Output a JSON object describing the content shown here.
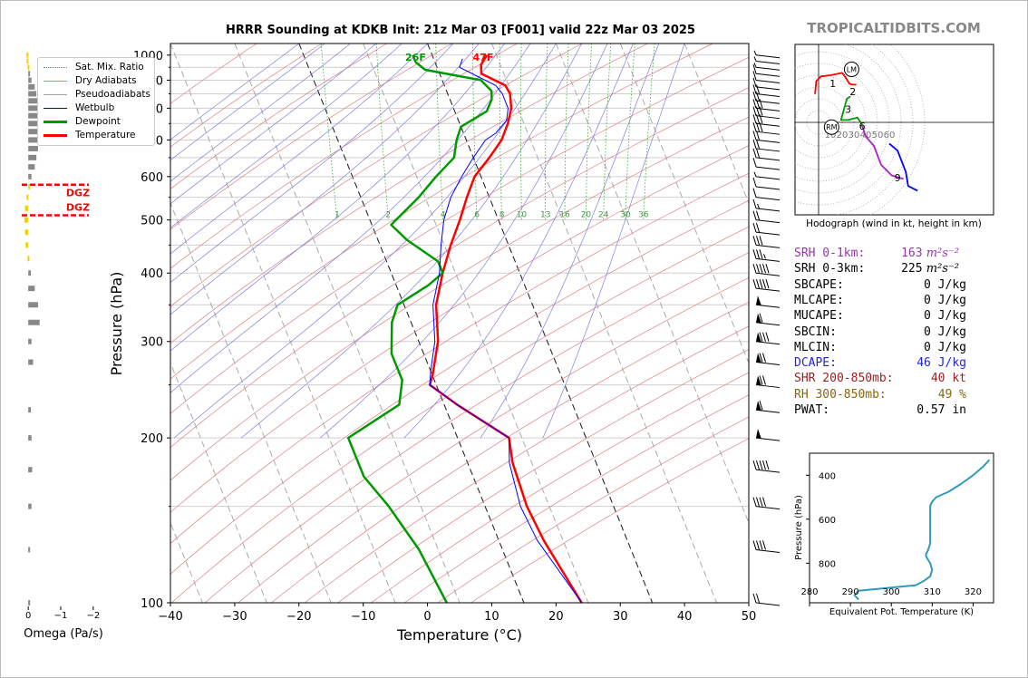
{
  "title": "HRRR Sounding at KDKB Init: 21z Mar 03 [F001] valid 22z Mar 03 2025",
  "brand": "TROPICALTIDBITS.COM",
  "colors": {
    "temperature": "#ff0000",
    "dewpoint": "#009900",
    "wetbulb": "#0000ff",
    "dry_adiabat": "#e08080",
    "moist_adiabat": "#8080e0",
    "mixing_ratio": "#33aa33",
    "srh1": "#9933aa",
    "dcape": "#2222dd",
    "shr": "#992222",
    "rh": "#886611",
    "theta_e": "#3399bb",
    "omega_bar": "#888888",
    "omega_dgz": "#f5d000"
  },
  "chart_data": [
    {
      "type": "line",
      "name": "skew-t",
      "xlabel": "Temperature (°C)",
      "ylabel": "Pressure (hPa)",
      "xlim": [
        -40,
        50
      ],
      "ylim": [
        1050,
        100
      ],
      "log_y": true,
      "x_ticks": [
        "−40",
        "−30",
        "−20",
        "−10",
        "0",
        "10",
        "20",
        "30",
        "40",
        "50"
      ],
      "y_ticks": [
        "100",
        "200",
        "300",
        "400",
        "500",
        "600",
        "700",
        "800",
        "900",
        "1000"
      ],
      "legend": [
        "Sat. Mix. Ratio",
        "Dry Adiabats",
        "Pseudoadiabats",
        "Wetbulb",
        "Dewpoint",
        "Temperature"
      ],
      "legend_position": "top-left",
      "mixing_ratio_labels": [
        "1",
        "2",
        "4",
        "6",
        "8",
        "10",
        "13",
        "16",
        "20",
        "24",
        "30",
        "36"
      ],
      "surface_labels": {
        "dewpoint": "26F",
        "temperature": "47F"
      },
      "series": [
        {
          "name": "Temperature",
          "points": [
            [
              8.5,
              1000
            ],
            [
              7,
              960
            ],
            [
              6.5,
              925
            ],
            [
              9.5,
              880
            ],
            [
              9.7,
              850
            ],
            [
              9,
              800
            ],
            [
              7.5,
              750
            ],
            [
              5.5,
              700
            ],
            [
              2.5,
              650
            ],
            [
              -1,
              600
            ],
            [
              -3.5,
              550
            ],
            [
              -6,
              500
            ],
            [
              -9,
              450
            ],
            [
              -12,
              400
            ],
            [
              -15,
              350
            ],
            [
              -17,
              300
            ],
            [
              -20,
              260
            ],
            [
              -21,
              250
            ],
            [
              -18,
              230
            ],
            [
              -12,
              200
            ],
            [
              -13,
              180
            ],
            [
              -13.5,
              150
            ],
            [
              -13,
              130
            ],
            [
              -11,
              100
            ]
          ]
        },
        {
          "name": "Dewpoint",
          "points": [
            [
              -3,
              1000
            ],
            [
              -3,
              970
            ],
            [
              -2,
              940
            ],
            [
              6,
              900
            ],
            [
              7,
              860
            ],
            [
              6.5,
              830
            ],
            [
              5,
              790
            ],
            [
              0,
              740
            ],
            [
              -1.5,
              700
            ],
            [
              -3,
              650
            ],
            [
              -7,
              600
            ],
            [
              -11,
              550
            ],
            [
              -17,
              490
            ],
            [
              -15.5,
              460
            ],
            [
              -12,
              420
            ],
            [
              -12,
              400
            ],
            [
              -15,
              380
            ],
            [
              -21,
              350
            ],
            [
              -23,
              325
            ],
            [
              -25,
              285
            ],
            [
              -25,
              255
            ],
            [
              -27,
              230
            ],
            [
              -37,
              200
            ],
            [
              -37,
              170
            ],
            [
              -35,
              150
            ],
            [
              -33,
              125
            ],
            [
              -32,
              100
            ]
          ]
        },
        {
          "name": "Wetbulb",
          "points": [
            [
              4.5,
              985
            ],
            [
              3.5,
              950
            ],
            [
              6,
              910
            ],
            [
              8,
              880
            ],
            [
              8.5,
              850
            ],
            [
              8.5,
              800
            ],
            [
              7.5,
              760
            ],
            [
              5,
              720
            ],
            [
              3,
              700
            ],
            [
              0,
              650
            ],
            [
              -3,
              600
            ],
            [
              -6,
              550
            ],
            [
              -8.5,
              500
            ],
            [
              -10.5,
              450
            ],
            [
              -12.5,
              400
            ],
            [
              -15.5,
              350
            ],
            [
              -17.5,
              300
            ],
            [
              -20,
              265
            ],
            [
              -21,
              250
            ],
            [
              -18,
              230
            ],
            [
              -12,
              200
            ],
            [
              -13.5,
              180
            ],
            [
              -14.5,
              150
            ],
            [
              -14,
              130
            ],
            [
              -11,
              100
            ]
          ]
        }
      ]
    },
    {
      "type": "bar",
      "name": "omega-profile",
      "xlabel": "Omega (Pa/s)",
      "xlim": [
        0.2,
        -2.2
      ],
      "x_ticks": [
        "0",
        "−1",
        "−2"
      ],
      "dgz_label": "DGZ",
      "dgz_bounds_hPa": [
        510,
        580
      ],
      "pressure": [
        100,
        125,
        150,
        175,
        200,
        225,
        275,
        300,
        325,
        350,
        375,
        400,
        425,
        450,
        475,
        500,
        525,
        550,
        575,
        600,
        625,
        650,
        675,
        700,
        725,
        750,
        775,
        800,
        825,
        850,
        875,
        900,
        925,
        950,
        975,
        1000
      ],
      "omega": [
        -0.05,
        -0.05,
        -0.1,
        -0.12,
        -0.1,
        -0.08,
        -0.15,
        -0.1,
        -0.35,
        -0.3,
        -0.2,
        -0.08,
        0.02,
        0.08,
        0.1,
        0.12,
        0.1,
        0.05,
        0.0,
        -0.1,
        -0.2,
        -0.25,
        -0.3,
        -0.35,
        -0.4,
        -0.4,
        -0.4,
        -0.35,
        -0.3,
        -0.25,
        -0.2,
        -0.1,
        -0.05,
        0.02,
        0.05,
        0.05
      ]
    },
    {
      "type": "line",
      "name": "hodograph",
      "caption": "Hodograph (wind in kt, height in km)",
      "ring_labels": [
        "10",
        "20",
        "30",
        "40",
        "50",
        "60"
      ],
      "height_labels": [
        {
          "label": "1",
          "u": 12,
          "v": 33
        },
        {
          "label": "2",
          "u": 29,
          "v": 26
        },
        {
          "label": "3",
          "u": 25,
          "v": 11
        },
        {
          "label": "6",
          "u": 37,
          "v": -3
        }
      ],
      "extra_height_label": {
        "label": "9",
        "u": 67,
        "v": -47
      },
      "markers": [
        {
          "label": "LM",
          "u": 28,
          "v": 45
        },
        {
          "label": "RM",
          "u": 11,
          "v": -4
        }
      ],
      "series": [
        {
          "name": "0-3 km",
          "color": "#ff0000",
          "points": [
            [
              -3,
              24
            ],
            [
              -2,
              35
            ],
            [
              2,
              39
            ],
            [
              10,
              40
            ],
            [
              20,
              42
            ],
            [
              23,
              38
            ],
            [
              26,
              33
            ],
            [
              28,
              32
            ],
            [
              32,
              32
            ]
          ]
        },
        {
          "name": "3-6 km",
          "color": "#009900",
          "points": [
            [
              27,
              22
            ],
            [
              24,
              20
            ],
            [
              19,
              2
            ],
            [
              25,
              2
            ],
            [
              33,
              4
            ],
            [
              37,
              -2
            ]
          ]
        },
        {
          "name": "6-9 km",
          "color": "#aa22cc",
          "points": [
            [
              37,
              -3
            ],
            [
              40,
              -12
            ],
            [
              47,
              -20
            ],
            [
              53,
              -36
            ],
            [
              62,
              -45
            ],
            [
              72,
              -48
            ]
          ]
        },
        {
          "name": "9+ km",
          "color": "#0000ff",
          "points": [
            [
              60,
              -18
            ],
            [
              67,
              -24
            ],
            [
              74,
              -42
            ],
            [
              76,
              -54
            ],
            [
              84,
              -58
            ]
          ]
        }
      ]
    },
    {
      "type": "line",
      "name": "theta-e-profile",
      "xlabel": "Equivalent Pot. Temperature (K)",
      "ylabel": "Pressure (hPa)",
      "xlim": [
        280,
        325
      ],
      "ylim": [
        980,
        300
      ],
      "x_ticks": [
        "280",
        "290",
        "300",
        "310",
        "320"
      ],
      "y_ticks": [
        "400",
        "600",
        "800"
      ],
      "series": [
        {
          "name": "Theta-E",
          "points": [
            [
              292,
              965
            ],
            [
              291,
              945
            ],
            [
              292,
              925
            ],
            [
              306,
              900
            ],
            [
              308,
              880
            ],
            [
              309.5,
              860
            ],
            [
              310,
              830
            ],
            [
              309.5,
              800
            ],
            [
              308.5,
              770
            ],
            [
              308.5,
              760
            ],
            [
              309,
              740
            ],
            [
              309.5,
              710
            ],
            [
              309.5,
              650
            ],
            [
              309.5,
              580
            ],
            [
              309.5,
              540
            ],
            [
              310,
              520
            ],
            [
              311,
              500
            ],
            [
              314,
              475
            ],
            [
              317,
              440
            ],
            [
              320,
              400
            ],
            [
              322.5,
              360
            ],
            [
              324,
              330
            ]
          ]
        }
      ]
    }
  ],
  "barbs": [
    {
      "p": 100,
      "flags": 0,
      "full": 2,
      "half": 0
    },
    {
      "p": 125,
      "flags": 0,
      "full": 4,
      "half": 0
    },
    {
      "p": 150,
      "flags": 0,
      "full": 4,
      "half": 0
    },
    {
      "p": 175,
      "flags": 0,
      "full": 5,
      "half": 0
    },
    {
      "p": 200,
      "flags": 1,
      "full": 0,
      "half": 0
    },
    {
      "p": 225,
      "flags": 1,
      "full": 1,
      "half": 0
    },
    {
      "p": 250,
      "flags": 1,
      "full": 2,
      "half": 0
    },
    {
      "p": 275,
      "flags": 1,
      "full": 2,
      "half": 0
    },
    {
      "p": 300,
      "flags": 1,
      "full": 3,
      "half": 0
    },
    {
      "p": 325,
      "flags": 1,
      "full": 1,
      "half": 0
    },
    {
      "p": 350,
      "flags": 1,
      "full": 0,
      "half": 0
    },
    {
      "p": 375,
      "flags": 0,
      "full": 5,
      "half": 0
    },
    {
      "p": 400,
      "flags": 0,
      "full": 5,
      "half": 0
    },
    {
      "p": 425,
      "flags": 0,
      "full": 3,
      "half": 1
    },
    {
      "p": 450,
      "flags": 0,
      "full": 3,
      "half": 0
    },
    {
      "p": 475,
      "flags": 0,
      "full": 2,
      "half": 0
    },
    {
      "p": 500,
      "flags": 0,
      "full": 2,
      "half": 0
    },
    {
      "p": 525,
      "flags": 0,
      "full": 1,
      "half": 1
    },
    {
      "p": 550,
      "flags": 0,
      "full": 1,
      "half": 0
    },
    {
      "p": 575,
      "flags": 0,
      "full": 1,
      "half": 0
    },
    {
      "p": 600,
      "flags": 0,
      "full": 0,
      "half": 1
    },
    {
      "p": 625,
      "flags": 0,
      "full": 1,
      "half": 0
    },
    {
      "p": 650,
      "flags": 0,
      "full": 2,
      "half": 0
    },
    {
      "p": 675,
      "flags": 0,
      "full": 2,
      "half": 0
    },
    {
      "p": 700,
      "flags": 0,
      "full": 2,
      "half": 0
    },
    {
      "p": 725,
      "flags": 0,
      "full": 3,
      "half": 0
    },
    {
      "p": 750,
      "flags": 0,
      "full": 3,
      "half": 0
    },
    {
      "p": 775,
      "flags": 0,
      "full": 3,
      "half": 0
    },
    {
      "p": 800,
      "flags": 0,
      "full": 3,
      "half": 0
    },
    {
      "p": 825,
      "flags": 0,
      "full": 2,
      "half": 0
    },
    {
      "p": 850,
      "flags": 0,
      "full": 2,
      "half": 0
    },
    {
      "p": 875,
      "flags": 0,
      "full": 1,
      "half": 0
    },
    {
      "p": 900,
      "flags": 0,
      "full": 1,
      "half": 0
    },
    {
      "p": 925,
      "flags": 0,
      "full": 1,
      "half": 0
    },
    {
      "p": 950,
      "flags": 0,
      "full": 0,
      "half": 1
    },
    {
      "p": 975,
      "flags": 0,
      "full": 0,
      "half": 1
    },
    {
      "p": 1000,
      "flags": 0,
      "full": 0,
      "half": 1
    }
  ],
  "stats": [
    {
      "label": "SRH 0-1km:",
      "value": "163",
      "unit": "m²s⁻²",
      "color": "#9933aa"
    },
    {
      "label": "SRH 0-3km:",
      "value": "225",
      "unit": "m²s⁻²",
      "color": "#000000"
    },
    {
      "label": "SBCAPE:",
      "value": "0 J/kg",
      "unit": "",
      "color": "#000000"
    },
    {
      "label": "MLCAPE:",
      "value": "0 J/kg",
      "unit": "",
      "color": "#000000"
    },
    {
      "label": "MUCAPE:",
      "value": "0 J/kg",
      "unit": "",
      "color": "#000000"
    },
    {
      "label": "SBCIN:",
      "value": "0 J/kg",
      "unit": "",
      "color": "#000000"
    },
    {
      "label": "MLCIN:",
      "value": "0 J/kg",
      "unit": "",
      "color": "#000000"
    },
    {
      "label": "DCAPE:",
      "value": "46 J/kg",
      "unit": "",
      "color": "#2222dd"
    },
    {
      "label": "SHR 200-850mb:",
      "value": "40 kt",
      "unit": "",
      "color": "#992222"
    },
    {
      "label": "RH 300-850mb:",
      "value": "49 %",
      "unit": "",
      "color": "#886611"
    },
    {
      "label": "PWAT:",
      "value": "0.57 in",
      "unit": "",
      "color": "#000000"
    }
  ]
}
